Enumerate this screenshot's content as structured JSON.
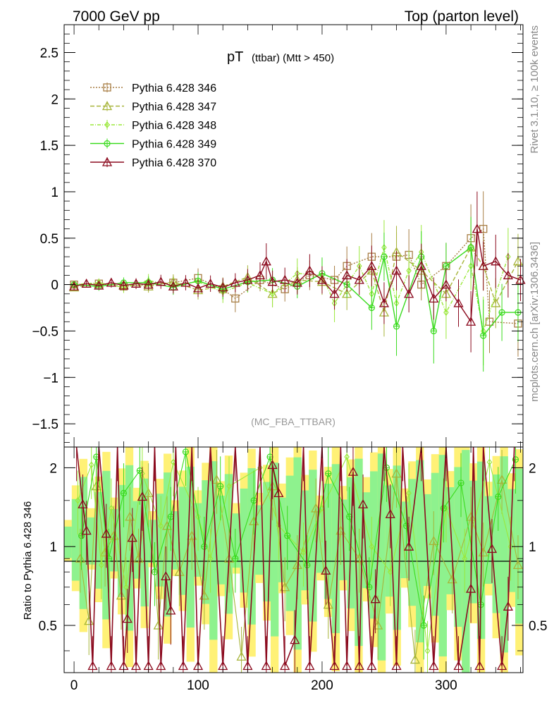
{
  "header": {
    "left": "7000 GeV pp",
    "right": "Top (parton level)"
  },
  "side": {
    "rivet": "Rivet 3.1.10, ≥ 100k events",
    "mcplots": "mcplots.cern.ch [arXiv:1306.3436]"
  },
  "chart_data": [
    {
      "type": "line",
      "title": "pT",
      "title_sub": "(ttbar) (Mtt > 450)",
      "watermark": "(MC_FBA_TTBAR)",
      "xlim": [
        -8,
        362
      ],
      "ylim": [
        -1.75,
        2.8
      ],
      "yticks": [
        -1.5,
        -1,
        -0.5,
        0,
        0.5,
        1,
        1.5,
        2,
        2.5
      ],
      "ytick_labels": [
        "−1.5",
        "−1",
        "−0.5",
        "0",
        "0.5",
        "1",
        "1.5",
        "2",
        "2.5"
      ],
      "legend_position": "top-left",
      "series": [
        {
          "name": "Pythia 6.428 346",
          "color": "#a87e45",
          "marker": "square",
          "dash": "2,2",
          "x": [
            0,
            20,
            40,
            60,
            80,
            100,
            120,
            130,
            150,
            170,
            190,
            210,
            220,
            240,
            260,
            270,
            280,
            300,
            320,
            330,
            335,
            358
          ],
          "y": [
            0,
            0.01,
            -0.02,
            0,
            0.02,
            0.07,
            -0.05,
            -0.15,
            0.05,
            -0.05,
            0.1,
            0.05,
            0.2,
            0.3,
            0.3,
            0.32,
            0,
            0.2,
            0.5,
            0.6,
            -0.4,
            -0.42
          ]
        },
        {
          "name": "Pythia 6.428 347",
          "color": "#a7b53a",
          "marker": "triangle",
          "dash": "6,3",
          "x": [
            0,
            20,
            40,
            60,
            80,
            100,
            120,
            140,
            160,
            180,
            200,
            220,
            240,
            250,
            260,
            280,
            300,
            320,
            330,
            340,
            358
          ],
          "y": [
            -0.03,
            0.01,
            0,
            -0.02,
            0.03,
            -0.06,
            -0.02,
            0.08,
            -0.1,
            0.05,
            0.03,
            -0.1,
            0.15,
            -0.3,
            0.35,
            0.15,
            -0.1,
            0.4,
            0.2,
            -0.2,
            0.25
          ]
        },
        {
          "name": "Pythia 6.428 348",
          "color": "#9be83c",
          "marker": "diamond",
          "dash": "5,2,1,2",
          "x": [
            0,
            20,
            40,
            60,
            80,
            100,
            120,
            140,
            160,
            180,
            200,
            210,
            230,
            240,
            250,
            260,
            270,
            280,
            300,
            320,
            330,
            350
          ],
          "y": [
            0,
            0.02,
            -0.03,
            0.04,
            0,
            0.03,
            -0.08,
            0.02,
            -0.1,
            0.12,
            0.1,
            -0.2,
            0.2,
            -0.1,
            0.4,
            -0.2,
            0.15,
            0.35,
            -0.3,
            0.2,
            -0.5,
            0.3
          ]
        },
        {
          "name": "Pythia 6.428 349",
          "color": "#3adb1e",
          "marker": "circle-plus",
          "dash": "",
          "x": [
            0,
            20,
            40,
            60,
            80,
            100,
            120,
            140,
            160,
            180,
            200,
            220,
            240,
            250,
            260,
            280,
            290,
            300,
            320,
            330,
            345,
            358
          ],
          "y": [
            0,
            -0.02,
            0.02,
            0.02,
            -0.03,
            0.04,
            -0.05,
            0.03,
            0.05,
            -0.02,
            0.12,
            0,
            -0.25,
            0.3,
            -0.45,
            0.3,
            -0.5,
            0.2,
            0.4,
            -0.55,
            -0.3,
            -0.3
          ]
        },
        {
          "name": "Pythia 6.428 370",
          "color": "#8b0a1e",
          "marker": "triangle",
          "dash": "",
          "x": [
            0,
            10,
            20,
            30,
            40,
            50,
            60,
            70,
            80,
            90,
            100,
            110,
            120,
            130,
            140,
            150,
            155,
            160,
            170,
            180,
            190,
            200,
            210,
            220,
            230,
            240,
            250,
            260,
            270,
            280,
            290,
            300,
            310,
            320,
            325,
            330,
            340,
            350,
            360
          ],
          "y": [
            -0.02,
            0.01,
            -0.01,
            0.02,
            -0.01,
            0.01,
            0,
            0.03,
            -0.02,
            0.02,
            -0.04,
            0.01,
            -0.03,
            0.02,
            0.05,
            0.1,
            0.25,
            0.03,
            0.05,
            0.02,
            0.15,
            0.05,
            -0.1,
            0.1,
            0.05,
            0.2,
            -0.2,
            0.15,
            -0.1,
            0.2,
            -0.15,
            0,
            -0.2,
            -0.4,
            0.6,
            0.2,
            0.25,
            0.1,
            0.05
          ]
        }
      ]
    },
    {
      "type": "line",
      "ylabel": "Ratio to Pythia 6.428 346",
      "ylim": [
        0.33,
        2.4
      ],
      "yscale": "log",
      "yticks": [
        0.5,
        1,
        2
      ],
      "ytick_labels": [
        "0.5",
        "1",
        "2"
      ],
      "xlim": [
        -8,
        362
      ],
      "xticks": [
        0,
        100,
        200,
        300
      ],
      "xtick_labels": [
        "0",
        "100",
        "200",
        "300"
      ],
      "reference_line": 1,
      "band_colors": [
        "#fff176",
        "#8ef28e"
      ],
      "series": [
        {
          "name": "Pythia 6.428 370",
          "color": "#8b0a1e",
          "marker": "triangle",
          "x": [
            2,
            7,
            10,
            15,
            20,
            26,
            30,
            35,
            40,
            43,
            47,
            50,
            55,
            60,
            65,
            70,
            74,
            78,
            82,
            88,
            95,
            100,
            110,
            120,
            130,
            140,
            150,
            155,
            160,
            165,
            170,
            178,
            185,
            190,
            200,
            203,
            210,
            215,
            220,
            225,
            230,
            233,
            240,
            243,
            250,
            255,
            260,
            265,
            270,
            280,
            290,
            300,
            310,
            320,
            322,
            327,
            330,
            337,
            345,
            350,
            355
          ],
          "y": [
            2.4,
            1.45,
            1.15,
            0.35,
            2.4,
            1.12,
            0.35,
            2.4,
            0.35,
            0.53,
            1.08,
            0.35,
            1.55,
            0.35,
            2.4,
            0.35,
            0.77,
            0.57,
            2.4,
            0.35,
            2.4,
            0.35,
            2.4,
            0.35,
            2.4,
            0.35,
            2.4,
            0.35,
            2.05,
            1.6,
            0.35,
            0.44,
            2.4,
            0.35,
            2.4,
            0.81,
            0.35,
            2.4,
            0.35,
            1.93,
            0.35,
            1.45,
            0.35,
            0.63,
            2.4,
            1.33,
            0.35,
            2.4,
            1.0,
            2.4,
            0.35,
            2.4,
            0.35,
            0.69,
            2.4,
            0.35,
            2.4,
            0.98,
            0.35,
            0.59,
            2.4
          ]
        },
        {
          "name": "Pythia 6.428 347",
          "color": "#a7b53a",
          "marker": "triangle",
          "x": [
            5,
            12,
            18,
            25,
            32,
            38,
            45,
            52,
            60,
            68,
            75,
            85,
            95,
            105,
            115,
            125,
            135,
            145,
            160,
            170,
            180,
            195,
            205,
            215,
            230,
            245,
            260,
            275,
            290,
            305,
            320,
            330,
            345,
            358
          ],
          "y": [
            0.9,
            0.52,
            1.7,
            0.95,
            1.1,
            0.65,
            1.3,
            0.9,
            1.6,
            0.5,
            1.2,
            0.8,
            1.1,
            0.65,
            1.8,
            0.9,
            0.38,
            1.25,
            1.7,
            0.7,
            0.85,
            1.4,
            0.6,
            1.15,
            0.9,
            0.5,
            1.9,
            0.37,
            1.05,
            0.75,
            1.3,
            0.95,
            1.8,
            0.85
          ]
        },
        {
          "name": "Pythia 6.428 348",
          "color": "#9be83c",
          "marker": "diamond",
          "x": [
            3,
            14,
            22,
            30,
            42,
            55,
            70,
            80,
            100,
            110,
            125,
            150,
            165,
            185,
            200,
            220,
            240,
            255,
            270,
            285,
            300,
            315,
            335,
            352
          ],
          "y": [
            1.5,
            2.05,
            0.85,
            1.4,
            0.7,
            1.9,
            1.2,
            2.1,
            1.3,
            0.9,
            1.7,
            2.0,
            1.2,
            0.95,
            1.4,
            2.2,
            1.0,
            0.8,
            1.6,
            0.4,
            1.4,
            0.9,
            2.1,
            1.0
          ]
        },
        {
          "name": "Pythia 6.428 349",
          "color": "#3adb1e",
          "marker": "circle-plus",
          "x": [
            6,
            18,
            28,
            40,
            53,
            65,
            78,
            90,
            105,
            118,
            130,
            145,
            158,
            172,
            188,
            205,
            222,
            238,
            252,
            268,
            282,
            298,
            312,
            328,
            342,
            356
          ],
          "y": [
            1.1,
            2.2,
            0.9,
            1.6,
            1.95,
            0.8,
            1.3,
            2.3,
            1.0,
            1.7,
            0.9,
            1.5,
            2.2,
            1.1,
            0.85,
            1.9,
            1.3,
            0.7,
            2.0,
            1.2,
            0.5,
            1.4,
            1.75,
            0.6,
            1.55,
            2.15
          ]
        }
      ]
    }
  ]
}
